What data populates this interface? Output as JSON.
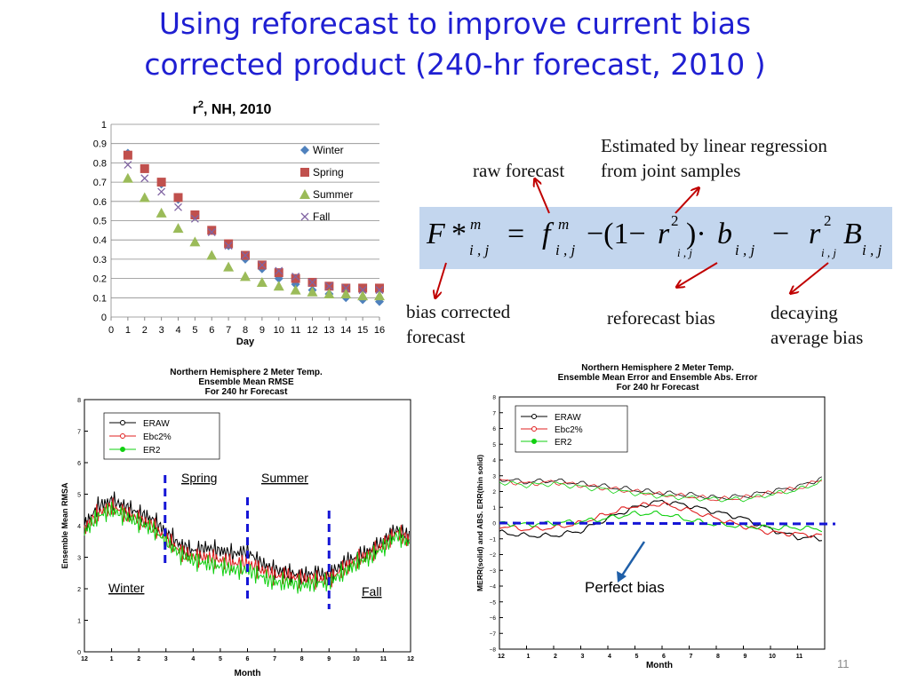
{
  "title_line1": "Using reforecast to improve current bias",
  "title_line2": "corrected product (240-hr forecast, 2010 )",
  "annotations": {
    "raw_forecast": "raw forecast",
    "estimated_line1": "Estimated by linear regression",
    "estimated_line2": "from joint samples",
    "bias_corrected_line1": "bias corrected",
    "bias_corrected_line2": "forecast",
    "reforecast_bias": "reforecast bias",
    "decaying_line1": "decaying",
    "decaying_line2": "average bias"
  },
  "formula": {
    "F": "F",
    "star": "*",
    "m": "m",
    "ij": "i , j",
    "eq": "=",
    "f": "f",
    "minus_open": "−(1−",
    "r": "r",
    "two": "2",
    "close_dot": ")·",
    "b": "b",
    "minus": "−",
    "B": "B"
  },
  "slide_number": "11",
  "colors": {
    "title": "#1f1fd2",
    "arrow": "#c00000",
    "formula_bg": "#c3d6ee",
    "winter": "#4f81bd",
    "spring": "#c0504d",
    "summer": "#9bbb59",
    "fall": "#8064a2",
    "season_dash": "#1515d6",
    "raw": "#000000",
    "ebc": "#e02020",
    "er2": "#10d010"
  },
  "chart_data": [
    {
      "type": "scatter",
      "title": "r2, NH, 2010",
      "title_base": "r",
      "title_sup": "2",
      "title_rest": ",  NH,  2010",
      "xlabel": "Day",
      "ylabel": "",
      "xlim": [
        0,
        16
      ],
      "ylim": [
        0,
        1
      ],
      "x_ticks": [
        "0",
        "1",
        "2",
        "3",
        "4",
        "5",
        "6",
        "7",
        "8",
        "9",
        "10",
        "11",
        "12",
        "13",
        "14",
        "15",
        "16"
      ],
      "y_ticks": [
        "0",
        "0.1",
        "0.2",
        "0.3",
        "0.4",
        "0.5",
        "0.6",
        "0.7",
        "0.8",
        "0.9",
        "1"
      ],
      "grid": "horizontal",
      "legend": "right",
      "x": [
        1,
        2,
        3,
        4,
        5,
        6,
        7,
        8,
        9,
        10,
        11,
        12,
        13,
        14,
        15,
        16
      ],
      "series": [
        {
          "name": "Winter",
          "marker": "diamond",
          "values": [
            0.85,
            0.77,
            0.69,
            0.61,
            0.53,
            0.45,
            0.37,
            0.3,
            0.25,
            0.2,
            0.17,
            0.14,
            0.12,
            0.1,
            0.09,
            0.08
          ]
        },
        {
          "name": "Spring",
          "marker": "square",
          "values": [
            0.84,
            0.77,
            0.7,
            0.62,
            0.53,
            0.45,
            0.38,
            0.32,
            0.27,
            0.23,
            0.2,
            0.18,
            0.16,
            0.15,
            0.15,
            0.15
          ]
        },
        {
          "name": "Summer",
          "marker": "triangle",
          "values": [
            0.72,
            0.62,
            0.54,
            0.46,
            0.39,
            0.32,
            0.26,
            0.21,
            0.18,
            0.16,
            0.14,
            0.13,
            0.12,
            0.12,
            0.11,
            0.11
          ]
        },
        {
          "name": "Fall",
          "marker": "x",
          "values": [
            0.79,
            0.72,
            0.65,
            0.57,
            0.51,
            0.44,
            0.37,
            0.32,
            0.27,
            0.24,
            0.21,
            0.18,
            0.16,
            0.15,
            0.14,
            0.14
          ]
        }
      ]
    },
    {
      "type": "line",
      "title_lines": [
        "Northern Hemisphere 2 Meter Temp.",
        "Ensemble Mean RMSE",
        "For 240 hr Forecast"
      ],
      "xlabel": "Month",
      "ylabel": "Ensemble Mean RMSA",
      "ylim": [
        0,
        8
      ],
      "x_ticks": [
        "12",
        "1",
        "2",
        "3",
        "4",
        "5",
        "6",
        "7",
        "8",
        "9",
        "10",
        "11",
        "12"
      ],
      "y_ticks": [
        "0",
        "1",
        "2",
        "3",
        "4",
        "5",
        "6",
        "7",
        "8"
      ],
      "legend": "top-left",
      "season_labels": [
        "Spring",
        "Summer",
        "Winter",
        "Fall"
      ],
      "season_dividers": [
        3,
        6,
        9
      ],
      "series": [
        {
          "name": "ERAW",
          "points": [
            [
              0,
              4.0
            ],
            [
              0.5,
              4.6
            ],
            [
              1,
              4.8
            ],
            [
              1.5,
              4.6
            ],
            [
              2,
              4.4
            ],
            [
              2.5,
              4.2
            ],
            [
              3,
              3.8
            ],
            [
              3.5,
              3.4
            ],
            [
              4,
              3.2
            ],
            [
              4.5,
              3.3
            ],
            [
              5,
              3.2
            ],
            [
              5.5,
              3.1
            ],
            [
              6,
              3.2
            ],
            [
              6.5,
              2.8
            ],
            [
              7,
              2.6
            ],
            [
              7.5,
              2.5
            ],
            [
              8,
              2.4
            ],
            [
              8.5,
              2.5
            ],
            [
              9,
              2.4
            ],
            [
              9.5,
              2.8
            ],
            [
              10,
              3.0
            ],
            [
              10.5,
              3.2
            ],
            [
              11,
              3.5
            ],
            [
              11.5,
              3.9
            ],
            [
              12,
              3.6
            ]
          ]
        },
        {
          "name": "Ebc2%",
          "points": [
            [
              0,
              3.9
            ],
            [
              0.5,
              4.4
            ],
            [
              1,
              4.6
            ],
            [
              1.5,
              4.4
            ],
            [
              2,
              4.2
            ],
            [
              2.5,
              4.0
            ],
            [
              3,
              3.6
            ],
            [
              3.5,
              3.2
            ],
            [
              4,
              3.0
            ],
            [
              4.5,
              3.0
            ],
            [
              5,
              2.9
            ],
            [
              5.5,
              2.8
            ],
            [
              6,
              2.8
            ],
            [
              6.5,
              2.6
            ],
            [
              7,
              2.4
            ],
            [
              7.5,
              2.4
            ],
            [
              8,
              2.3
            ],
            [
              8.5,
              2.3
            ],
            [
              9,
              2.3
            ],
            [
              9.5,
              2.6
            ],
            [
              10,
              2.9
            ],
            [
              10.5,
              3.1
            ],
            [
              11,
              3.4
            ],
            [
              11.5,
              3.8
            ],
            [
              12,
              3.5
            ]
          ]
        },
        {
          "name": "ER2",
          "points": [
            [
              0,
              3.8
            ],
            [
              0.5,
              4.3
            ],
            [
              1,
              4.5
            ],
            [
              1.5,
              4.3
            ],
            [
              2,
              4.1
            ],
            [
              2.5,
              3.9
            ],
            [
              3,
              3.5
            ],
            [
              3.5,
              3.1
            ],
            [
              4,
              2.9
            ],
            [
              4.5,
              2.8
            ],
            [
              5,
              2.7
            ],
            [
              5.5,
              2.6
            ],
            [
              6,
              2.6
            ],
            [
              6.5,
              2.4
            ],
            [
              7,
              2.2
            ],
            [
              7.5,
              2.2
            ],
            [
              8,
              2.1
            ],
            [
              8.5,
              2.2
            ],
            [
              9,
              2.2
            ],
            [
              9.5,
              2.5
            ],
            [
              10,
              2.8
            ],
            [
              10.5,
              3.0
            ],
            [
              11,
              3.3
            ],
            [
              11.5,
              3.7
            ],
            [
              12,
              3.4
            ]
          ]
        }
      ]
    },
    {
      "type": "line",
      "title_lines": [
        "Northern Hemisphere 2 Meter Temp.",
        "Ensemble Mean Error and Ensemble Abs. Error",
        "For 240 hr Forecast"
      ],
      "xlabel": "Month",
      "ylabel": "MERR(solid) and ABS. ERR(thin solid)",
      "ylim": [
        -8,
        8
      ],
      "x_ticks": [
        "12",
        "1",
        "2",
        "3",
        "4",
        "5",
        "6",
        "7",
        "8",
        "9",
        "10",
        "11"
      ],
      "y_ticks": [
        "-8",
        "-7",
        "-6",
        "-5",
        "-4",
        "-3",
        "-2",
        "-1",
        "0",
        "1",
        "2",
        "3",
        "4",
        "5",
        "6",
        "7",
        "8"
      ],
      "legend": "top-left",
      "annotation": "Perfect bias",
      "reference_line": 0,
      "series": [
        {
          "name": "ERAW abs",
          "points": [
            [
              0,
              2.8
            ],
            [
              1,
              2.6
            ],
            [
              2,
              2.7
            ],
            [
              3,
              2.5
            ],
            [
              4,
              2.3
            ],
            [
              5,
              2.1
            ],
            [
              6,
              1.9
            ],
            [
              7,
              1.8
            ],
            [
              8,
              1.6
            ],
            [
              9,
              1.7
            ],
            [
              10,
              2.0
            ],
            [
              11,
              2.3
            ],
            [
              12,
              2.9
            ]
          ]
        },
        {
          "name": "Ebc2% abs",
          "points": [
            [
              0,
              2.7
            ],
            [
              1,
              2.5
            ],
            [
              2,
              2.6
            ],
            [
              3,
              2.4
            ],
            [
              4,
              2.2
            ],
            [
              5,
              2.0
            ],
            [
              6,
              1.8
            ],
            [
              7,
              1.7
            ],
            [
              8,
              1.5
            ],
            [
              9,
              1.6
            ],
            [
              10,
              1.9
            ],
            [
              11,
              2.2
            ],
            [
              12,
              2.8
            ]
          ]
        },
        {
          "name": "ER2 abs",
          "points": [
            [
              0,
              2.6
            ],
            [
              1,
              2.4
            ],
            [
              2,
              2.5
            ],
            [
              3,
              2.3
            ],
            [
              4,
              2.1
            ],
            [
              5,
              1.9
            ],
            [
              6,
              1.7
            ],
            [
              7,
              1.6
            ],
            [
              8,
              1.5
            ],
            [
              9,
              1.5
            ],
            [
              10,
              1.8
            ],
            [
              11,
              2.1
            ],
            [
              12,
              2.7
            ]
          ]
        },
        {
          "name": "ERAW",
          "points": [
            [
              0,
              -0.6
            ],
            [
              1,
              -0.8
            ],
            [
              2,
              -0.8
            ],
            [
              3,
              -0.5
            ],
            [
              4,
              0.3
            ],
            [
              5,
              1.0
            ],
            [
              6,
              1.4
            ],
            [
              7,
              1.1
            ],
            [
              8,
              0.7
            ],
            [
              9,
              0.3
            ],
            [
              10,
              -0.4
            ],
            [
              11,
              -0.9
            ],
            [
              12,
              -1.0
            ]
          ]
        },
        {
          "name": "Ebc2%",
          "points": [
            [
              0,
              -0.2
            ],
            [
              1,
              -0.4
            ],
            [
              2,
              -0.3
            ],
            [
              3,
              0.0
            ],
            [
              4,
              0.6
            ],
            [
              5,
              1.1
            ],
            [
              6,
              1.2
            ],
            [
              7,
              0.8
            ],
            [
              8,
              0.3
            ],
            [
              9,
              -0.2
            ],
            [
              10,
              -0.6
            ],
            [
              11,
              -0.7
            ],
            [
              12,
              -0.8
            ]
          ]
        },
        {
          "name": "ER2",
          "points": [
            [
              0,
              0.0
            ],
            [
              1,
              -0.1
            ],
            [
              2,
              0.0
            ],
            [
              3,
              0.1
            ],
            [
              4,
              0.3
            ],
            [
              5,
              0.6
            ],
            [
              6,
              0.6
            ],
            [
              7,
              0.2
            ],
            [
              8,
              -0.1
            ],
            [
              9,
              -0.2
            ],
            [
              10,
              -0.3
            ],
            [
              11,
              -0.3
            ],
            [
              12,
              -0.4
            ]
          ]
        }
      ]
    }
  ]
}
